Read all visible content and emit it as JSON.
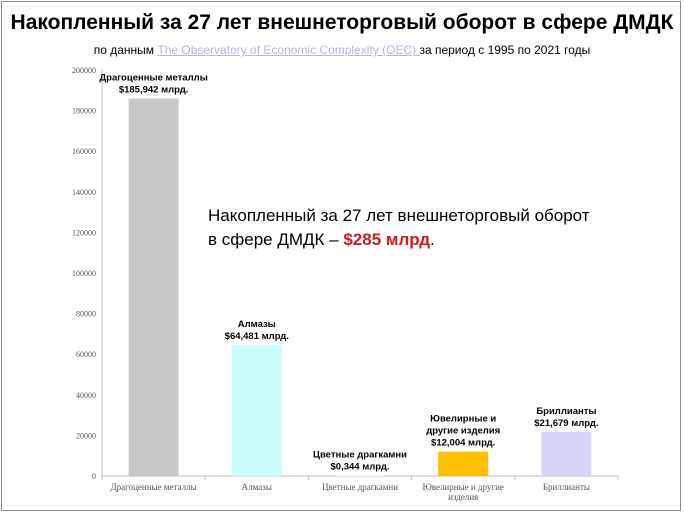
{
  "title": "Накопленный за 27 лет внешнеторговый оборот в сфере ДМДК",
  "subtitle": {
    "prefix": "по данным ",
    "link_text": "The Observatory of Economic Complexity (OEC) ",
    "suffix": "за период с 1995 по 2021 годы"
  },
  "callout": {
    "line1": "Накопленный за 27 лет внешнеторговый оборот",
    "line2_prefix": "в сфере ДМДК – ",
    "highlight": "$285 млрд",
    "line2_suffix": "."
  },
  "chart_data": {
    "type": "bar",
    "categories": [
      [
        "Драгоценные металлы"
      ],
      [
        "Алмазы"
      ],
      [
        "Цветные драгкамни"
      ],
      [
        "Ювелирные и другие",
        "изделия"
      ],
      [
        "Бриллианты"
      ]
    ],
    "values": [
      185942,
      64481,
      344,
      12004,
      21679
    ],
    "data_labels": [
      [
        "Драгоценные металлы",
        "$185,942 млрд."
      ],
      [
        "Алмазы",
        "$64,481 млрд."
      ],
      [
        "Цветные драгкамни",
        "$0,344 млрд."
      ],
      [
        "Ювелирные и",
        "другие изделия",
        "$12,004 млрд."
      ],
      [
        "Бриллианты",
        "$21,679 млрд."
      ]
    ],
    "colors": [
      "#c8c8c8",
      "#ccfcfc",
      "#f0f0f0",
      "#ffc000",
      "#d4d4f7"
    ],
    "ylim": [
      0,
      200000
    ],
    "yticks": [
      "0",
      "20000",
      "40000",
      "60000",
      "80000",
      "100000",
      "120000",
      "140000",
      "160000",
      "180000",
      "200000"
    ],
    "grid": false
  }
}
